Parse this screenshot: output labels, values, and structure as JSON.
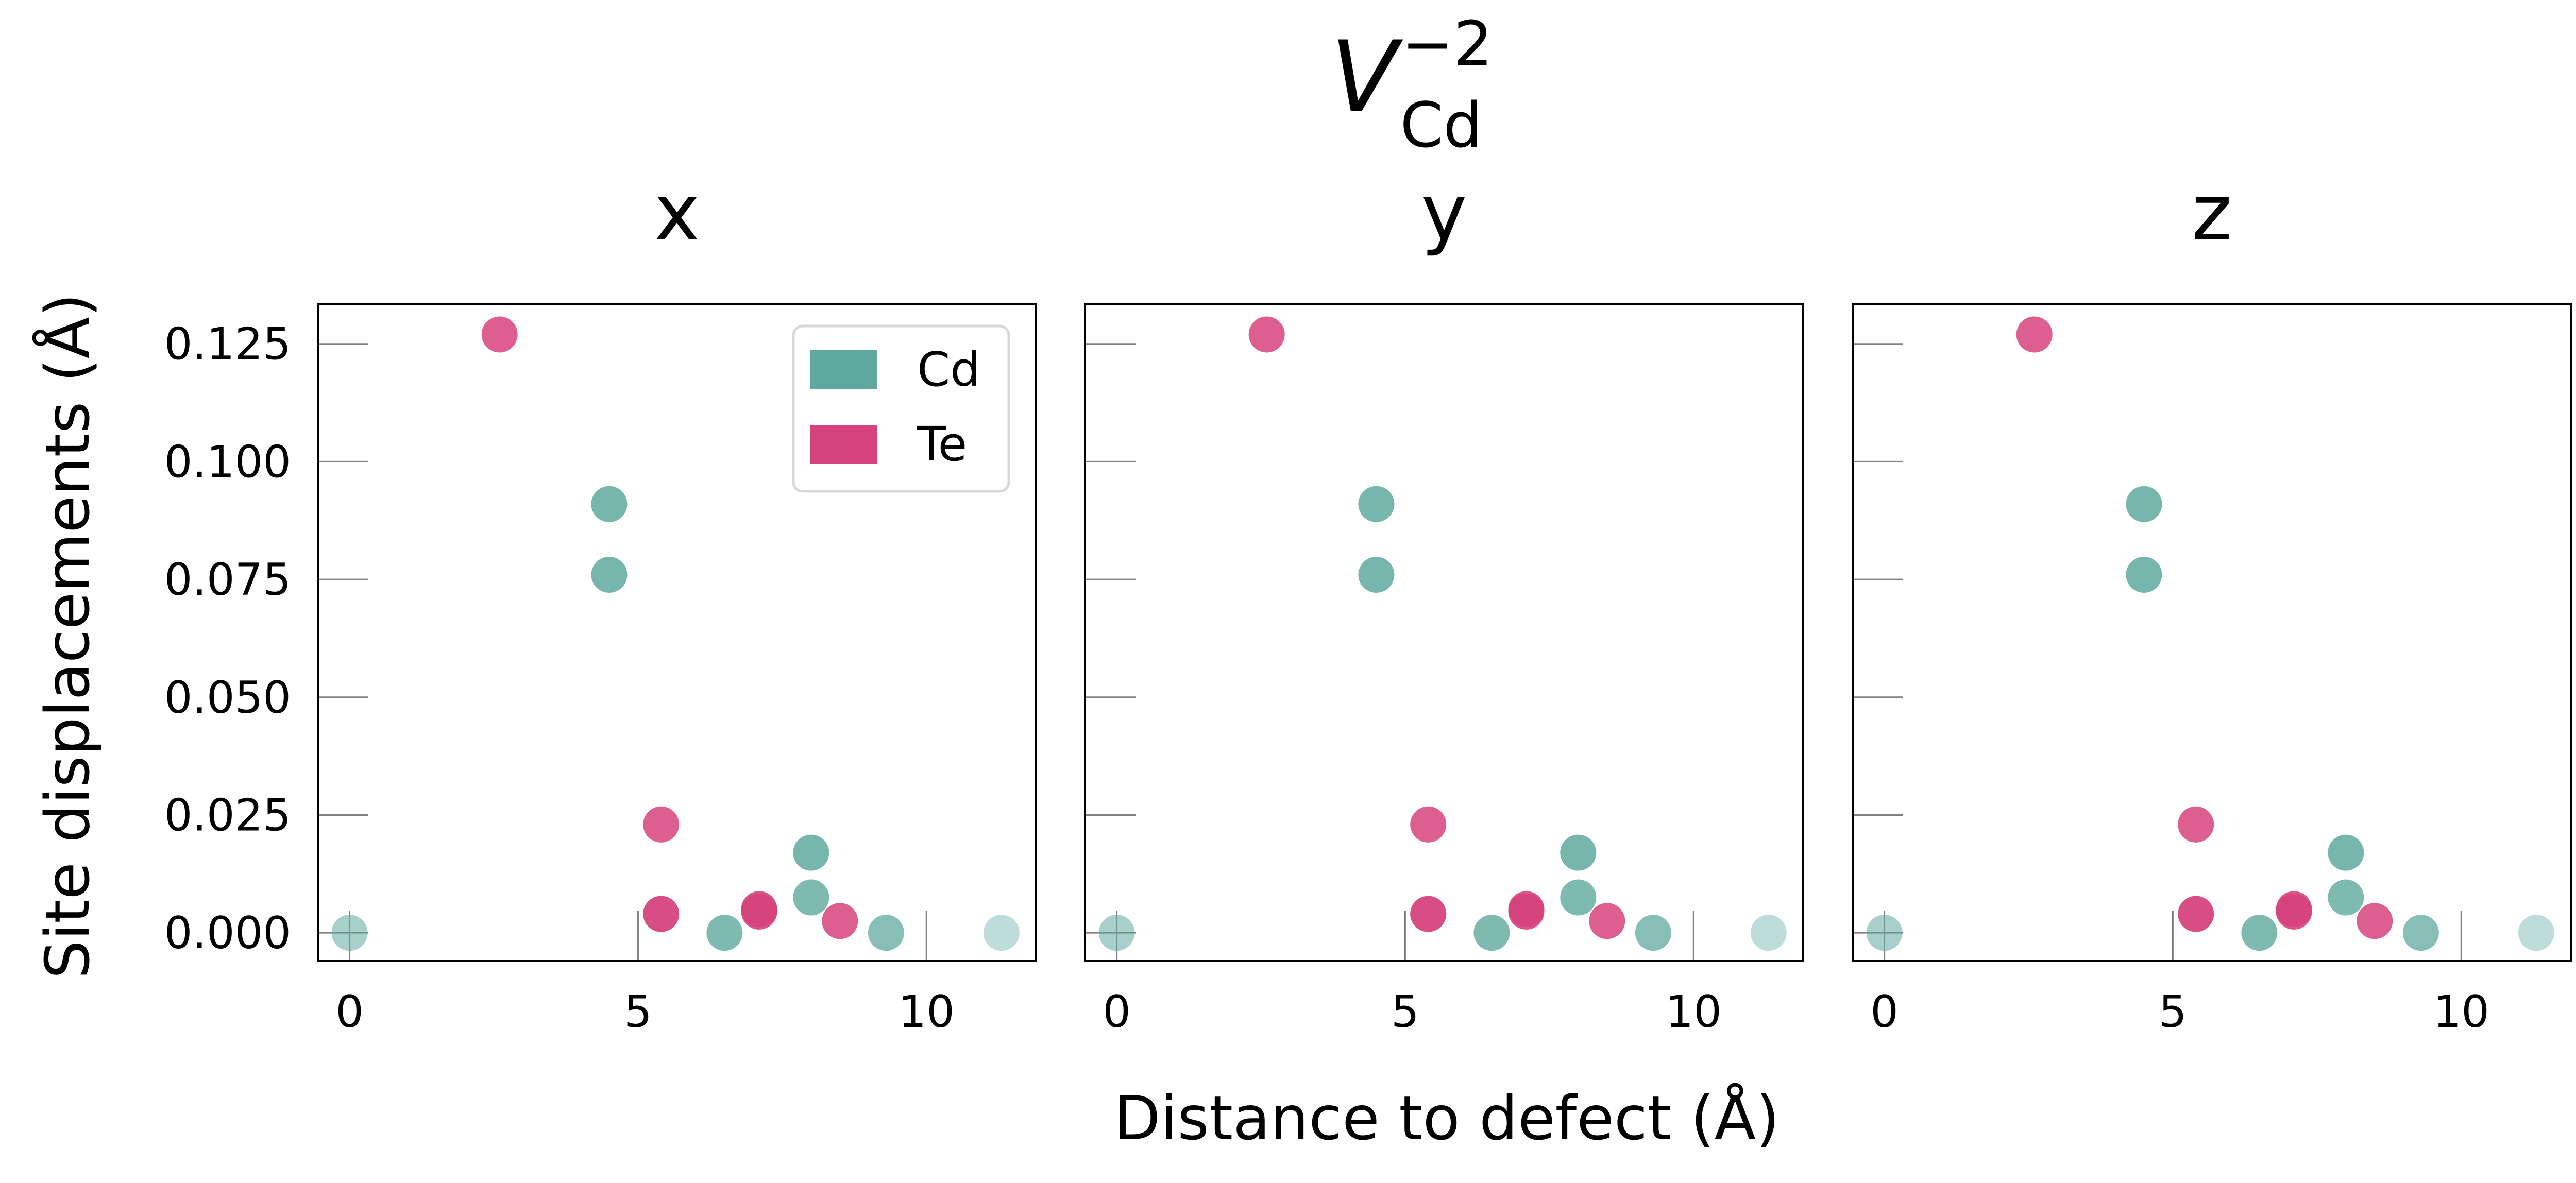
{
  "figure": {
    "title": {
      "base": "V",
      "subscript": "Cd",
      "superscript": "−2"
    },
    "xlabel": "Distance to defect (Å)",
    "ylabel": "Site displacements (Å)",
    "legend": {
      "placement": "top-right",
      "entries": [
        {
          "label": "Cd",
          "color": "#5fa99e"
        },
        {
          "label": "Te",
          "color": "#d6437c"
        }
      ]
    }
  },
  "chart_data": [
    {
      "type": "scatter",
      "title": "x",
      "xlim": [
        -0.55,
        11.9
      ],
      "ylim": [
        -0.006,
        0.1335
      ],
      "xticks": [
        0,
        5,
        10
      ],
      "xtick_labels": [
        "0",
        "5",
        "10"
      ],
      "yticks": [
        0,
        0.025,
        0.05,
        0.075,
        0.1,
        0.125
      ],
      "ytick_labels": [
        "0.000",
        "0.025",
        "0.050",
        "0.075",
        "0.100",
        "0.125"
      ],
      "grid": false,
      "series": [
        {
          "name": "Cd",
          "color": "#5fa99e",
          "points": [
            {
              "x": 0.0,
              "y": 0.0,
              "opacity": 0.55
            },
            {
              "x": 4.5,
              "y": 0.091,
              "opacity": 0.85
            },
            {
              "x": 4.5,
              "y": 0.076,
              "opacity": 0.85
            },
            {
              "x": 6.5,
              "y": 0.0,
              "opacity": 0.8
            },
            {
              "x": 8.0,
              "y": 0.017,
              "opacity": 0.85
            },
            {
              "x": 8.0,
              "y": 0.0075,
              "opacity": 0.8
            },
            {
              "x": 9.3,
              "y": 0.0,
              "opacity": 0.75
            },
            {
              "x": 11.3,
              "y": 0.0,
              "opacity": 0.4
            }
          ]
        },
        {
          "name": "Te",
          "color": "#d6437c",
          "points": [
            {
              "x": 2.6,
              "y": 0.127,
              "opacity": 0.85
            },
            {
              "x": 5.4,
              "y": 0.023,
              "opacity": 0.85
            },
            {
              "x": 5.4,
              "y": 0.004,
              "opacity": 0.95
            },
            {
              "x": 7.1,
              "y": 0.005,
              "opacity": 0.9
            },
            {
              "x": 7.1,
              "y": 0.0045,
              "opacity": 0.9
            },
            {
              "x": 8.5,
              "y": 0.0025,
              "opacity": 0.85
            }
          ]
        }
      ]
    },
    {
      "type": "scatter",
      "title": "y",
      "xlim": [
        -0.55,
        11.9
      ],
      "ylim": [
        -0.006,
        0.1335
      ],
      "xticks": [
        0,
        5,
        10
      ],
      "xtick_labels": [
        "0",
        "5",
        "10"
      ],
      "yticks": [
        0,
        0.025,
        0.05,
        0.075,
        0.1,
        0.125
      ],
      "ytick_labels": [],
      "grid": false,
      "series": [
        {
          "name": "Cd",
          "color": "#5fa99e",
          "points": [
            {
              "x": 0.0,
              "y": 0.0,
              "opacity": 0.55
            },
            {
              "x": 4.5,
              "y": 0.091,
              "opacity": 0.85
            },
            {
              "x": 4.5,
              "y": 0.076,
              "opacity": 0.85
            },
            {
              "x": 6.5,
              "y": 0.0,
              "opacity": 0.8
            },
            {
              "x": 8.0,
              "y": 0.017,
              "opacity": 0.85
            },
            {
              "x": 8.0,
              "y": 0.0075,
              "opacity": 0.8
            },
            {
              "x": 9.3,
              "y": 0.0,
              "opacity": 0.75
            },
            {
              "x": 11.3,
              "y": 0.0,
              "opacity": 0.4
            }
          ]
        },
        {
          "name": "Te",
          "color": "#d6437c",
          "points": [
            {
              "x": 2.6,
              "y": 0.127,
              "opacity": 0.85
            },
            {
              "x": 5.4,
              "y": 0.023,
              "opacity": 0.85
            },
            {
              "x": 5.4,
              "y": 0.004,
              "opacity": 0.95
            },
            {
              "x": 7.1,
              "y": 0.005,
              "opacity": 0.9
            },
            {
              "x": 7.1,
              "y": 0.0045,
              "opacity": 0.9
            },
            {
              "x": 8.5,
              "y": 0.0025,
              "opacity": 0.85
            }
          ]
        }
      ]
    },
    {
      "type": "scatter",
      "title": "z",
      "xlim": [
        -0.55,
        11.9
      ],
      "ylim": [
        -0.006,
        0.1335
      ],
      "xticks": [
        0,
        5,
        10
      ],
      "xtick_labels": [
        "0",
        "5",
        "10"
      ],
      "yticks": [
        0,
        0.025,
        0.05,
        0.075,
        0.1,
        0.125
      ],
      "ytick_labels": [],
      "grid": false,
      "series": [
        {
          "name": "Cd",
          "color": "#5fa99e",
          "points": [
            {
              "x": 0.0,
              "y": 0.0,
              "opacity": 0.55
            },
            {
              "x": 4.5,
              "y": 0.091,
              "opacity": 0.85
            },
            {
              "x": 4.5,
              "y": 0.076,
              "opacity": 0.85
            },
            {
              "x": 6.5,
              "y": 0.0,
              "opacity": 0.8
            },
            {
              "x": 8.0,
              "y": 0.017,
              "opacity": 0.85
            },
            {
              "x": 8.0,
              "y": 0.0075,
              "opacity": 0.8
            },
            {
              "x": 9.3,
              "y": 0.0,
              "opacity": 0.75
            },
            {
              "x": 11.3,
              "y": 0.0,
              "opacity": 0.4
            }
          ]
        },
        {
          "name": "Te",
          "color": "#d6437c",
          "points": [
            {
              "x": 2.6,
              "y": 0.127,
              "opacity": 0.85
            },
            {
              "x": 5.4,
              "y": 0.023,
              "opacity": 0.85
            },
            {
              "x": 5.4,
              "y": 0.004,
              "opacity": 0.95
            },
            {
              "x": 7.1,
              "y": 0.005,
              "opacity": 0.9
            },
            {
              "x": 7.1,
              "y": 0.0045,
              "opacity": 0.9
            },
            {
              "x": 8.5,
              "y": 0.0025,
              "opacity": 0.85
            }
          ]
        }
      ]
    }
  ]
}
